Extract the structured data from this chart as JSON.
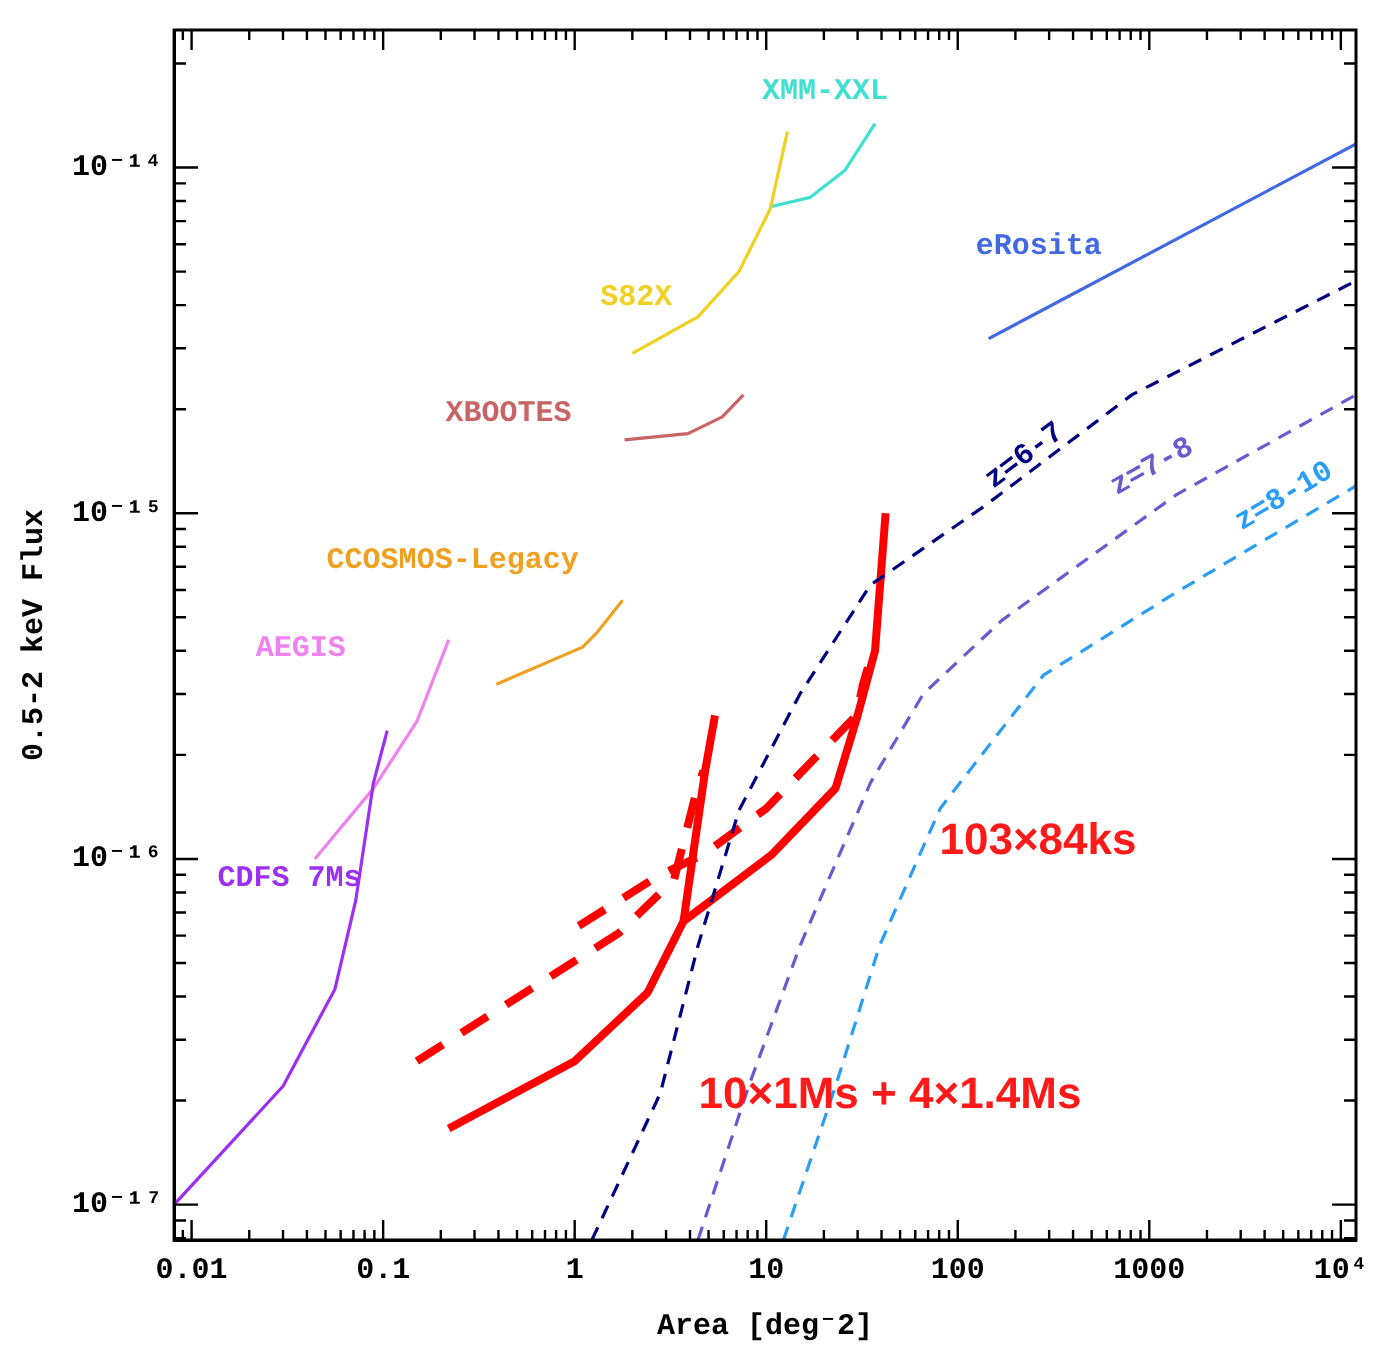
{
  "chart_data": {
    "type": "line",
    "xlabel": "Area [deg⁻2]",
    "ylabel": "0.5-2 keV Flux",
    "log": "xy",
    "grid": false,
    "legend": false,
    "xlim": [
      0.0081,
      12000
    ],
    "xticks": [
      {
        "value": 0.009,
        "label": null
      },
      {
        "value": 0.01,
        "label": "0.01"
      },
      {
        "value": 0.02,
        "label": null
      },
      {
        "value": 0.03,
        "label": null
      },
      {
        "value": 0.04,
        "label": null
      },
      {
        "value": 0.05,
        "label": null
      },
      {
        "value": 0.06,
        "label": null
      },
      {
        "value": 0.07,
        "label": null
      },
      {
        "value": 0.08,
        "label": null
      },
      {
        "value": 0.09,
        "label": null
      },
      {
        "value": 0.1,
        "label": "0.1"
      },
      {
        "value": 0.2,
        "label": null
      },
      {
        "value": 0.3,
        "label": null
      },
      {
        "value": 0.4,
        "label": null
      },
      {
        "value": 0.5,
        "label": null
      },
      {
        "value": 0.6,
        "label": null
      },
      {
        "value": 0.7,
        "label": null
      },
      {
        "value": 0.8,
        "label": null
      },
      {
        "value": 0.9,
        "label": null
      },
      {
        "value": 1,
        "label": "1"
      },
      {
        "value": 2,
        "label": null
      },
      {
        "value": 3,
        "label": null
      },
      {
        "value": 4,
        "label": null
      },
      {
        "value": 5,
        "label": null
      },
      {
        "value": 6,
        "label": null
      },
      {
        "value": 7,
        "label": null
      },
      {
        "value": 8,
        "label": null
      },
      {
        "value": 9,
        "label": null
      },
      {
        "value": 10,
        "label": "10"
      },
      {
        "value": 20,
        "label": null
      },
      {
        "value": 30,
        "label": null
      },
      {
        "value": 40,
        "label": null
      },
      {
        "value": 50,
        "label": null
      },
      {
        "value": 60,
        "label": null
      },
      {
        "value": 70,
        "label": null
      },
      {
        "value": 80,
        "label": null
      },
      {
        "value": 90,
        "label": null
      },
      {
        "value": 100,
        "label": "100"
      },
      {
        "value": 200,
        "label": null
      },
      {
        "value": 300,
        "label": null
      },
      {
        "value": 400,
        "label": null
      },
      {
        "value": 500,
        "label": null
      },
      {
        "value": 600,
        "label": null
      },
      {
        "value": 700,
        "label": null
      },
      {
        "value": 800,
        "label": null
      },
      {
        "value": 900,
        "label": null
      },
      {
        "value": 1000,
        "label": "1000"
      },
      {
        "value": 2000,
        "label": null
      },
      {
        "value": 3000,
        "label": null
      },
      {
        "value": 4000,
        "label": null
      },
      {
        "value": 5000,
        "label": null
      },
      {
        "value": 6000,
        "label": null
      },
      {
        "value": 7000,
        "label": null
      },
      {
        "value": 8000,
        "label": null
      },
      {
        "value": 9000,
        "label": null
      },
      {
        "value": 10000,
        "label": "10⁴"
      }
    ],
    "ylim": [
      7.9e-18,
      2.5e-14
    ],
    "yticks": [
      {
        "value": 8e-18,
        "label": null
      },
      {
        "value": 9e-18,
        "label": null
      },
      {
        "value": 1e-17,
        "label": "10⁻¹⁷"
      },
      {
        "value": 2e-17,
        "label": null
      },
      {
        "value": 3e-17,
        "label": null
      },
      {
        "value": 4e-17,
        "label": null
      },
      {
        "value": 5e-17,
        "label": null
      },
      {
        "value": 6e-17,
        "label": null
      },
      {
        "value": 7e-17,
        "label": null
      },
      {
        "value": 8e-17,
        "label": null
      },
      {
        "value": 9e-17,
        "label": null
      },
      {
        "value": 1e-16,
        "label": "10⁻¹⁶"
      },
      {
        "value": 2e-16,
        "label": null
      },
      {
        "value": 3e-16,
        "label": null
      },
      {
        "value": 4e-16,
        "label": null
      },
      {
        "value": 5e-16,
        "label": null
      },
      {
        "value": 6e-16,
        "label": null
      },
      {
        "value": 7e-16,
        "label": null
      },
      {
        "value": 8e-16,
        "label": null
      },
      {
        "value": 9e-16,
        "label": null
      },
      {
        "value": 1e-15,
        "label": "10⁻¹⁵"
      },
      {
        "value": 2e-15,
        "label": null
      },
      {
        "value": 3e-15,
        "label": null
      },
      {
        "value": 4e-15,
        "label": null
      },
      {
        "value": 5e-15,
        "label": null
      },
      {
        "value": 6e-15,
        "label": null
      },
      {
        "value": 7e-15,
        "label": null
      },
      {
        "value": 8e-15,
        "label": null
      },
      {
        "value": 9e-15,
        "label": null
      },
      {
        "value": 1e-14,
        "label": "10⁻¹⁴"
      },
      {
        "value": 2e-14,
        "label": null
      }
    ],
    "series": [
      {
        "name": "CDFS 7Ms",
        "color": "#9b30f0",
        "x": [
          0.0081,
          0.03,
          0.056,
          0.072,
          0.089,
          0.105
        ],
        "values": [
          1e-17,
          2.2e-17,
          4.2e-17,
          7.6e-17,
          1.66e-16,
          2.35e-16
        ]
      },
      {
        "name": "AEGIS",
        "color": "#ee82ee",
        "x": [
          0.044,
          0.089,
          0.15,
          0.22
        ],
        "values": [
          1e-16,
          1.6e-16,
          2.5e-16,
          4.3e-16
        ]
      },
      {
        "name": "CCOSMOS-Legacy",
        "color": "#f0a020",
        "x": [
          0.39,
          1.1,
          1.3,
          1.78
        ],
        "values": [
          3.2e-16,
          4.1e-16,
          4.5e-16,
          5.6e-16
        ]
      },
      {
        "name": "XBOOTES",
        "color": "#c86464",
        "x": [
          1.82,
          3.9,
          5.9,
          7.6
        ],
        "values": [
          1.63e-15,
          1.7e-15,
          1.9e-15,
          2.2e-15
        ]
      },
      {
        "name": "S82X",
        "color": "#f0d020",
        "x": [
          2.0,
          4.4,
          7.2,
          10.5,
          12.9
        ],
        "values": [
          2.9e-15,
          3.7e-15,
          5e-15,
          7.6e-15,
          1.27e-14
        ]
      },
      {
        "name": "XMM-XXL",
        "color": "#40e0d0",
        "x": [
          10.5,
          17,
          25.7,
          37
        ],
        "values": [
          7.7e-15,
          8.2e-15,
          9.8e-15,
          1.34e-14
        ]
      },
      {
        "name": "eRosita",
        "color": "#4169e1",
        "x": [
          145,
          12000
        ],
        "values": [
          3.2e-15,
          1.17e-14
        ]
      },
      {
        "name": "z=6-7",
        "color": "#000080",
        "line_style": "dashed",
        "x": [
          1.23,
          2.8,
          4.4,
          7.2,
          15,
          35,
          138,
          810,
          12000
        ],
        "values": [
          7.9e-18,
          2.1e-17,
          5.6e-17,
          1.38e-16,
          3e-16,
          6.2e-16,
          1.05e-15,
          2.2e-15,
          4.7e-15
        ]
      },
      {
        "name": "z=7-8",
        "color": "#6a5acd",
        "line_style": "dashed",
        "x": [
          4.4,
          8.1,
          15,
          35,
          66,
          170,
          1380,
          12000
        ],
        "values": [
          7.9e-18,
          2.2e-17,
          5.6e-17,
          1.66e-16,
          3e-16,
          4.9e-16,
          1.13e-15,
          2.2e-15
        ]
      },
      {
        "name": "z=8-10",
        "color": "#2a9df4",
        "line_style": "dashed",
        "x": [
          12.3,
          23,
          39,
          81,
          280,
          1380,
          12000
        ],
        "values": [
          7.9e-18,
          2.2e-17,
          5.6e-17,
          1.4e-16,
          3.4e-16,
          5.9e-16,
          1.2e-15
        ]
      },
      {
        "color": "#ff0000",
        "x": [
          0.22,
          1.0,
          2.4,
          3.7,
          4.8,
          5.4
        ],
        "values": [
          1.66e-17,
          2.6e-17,
          4.1e-17,
          6.6e-17,
          1.8e-16,
          2.6e-16
        ]
      },
      {
        "color": "#ff0000",
        "x": [
          3.7,
          10.7,
          23,
          30,
          37,
          42
        ],
        "values": [
          6.6e-17,
          1.03e-16,
          1.6e-16,
          2.6e-16,
          4e-16,
          1e-15
        ]
      },
      {
        "color": "#ff0000",
        "line_style": "dashed",
        "x": [
          0.15,
          1.7,
          3.3,
          4.3,
          4.7
        ],
        "values": [
          2.6e-17,
          6.1e-17,
          8.7e-17,
          1.55e-16,
          1.8e-16
        ]
      },
      {
        "color": "#ff0000",
        "line_style": "dashed",
        "x": [
          1.05,
          2.7,
          4.7,
          10,
          29.5,
          32,
          36
        ],
        "values": [
          6.4e-17,
          8.9e-17,
          1.03e-16,
          1.4e-16,
          2.6e-16,
          3.2e-16,
          4e-16
        ]
      }
    ],
    "annotations": [
      "103×84ks",
      "10×1Ms + 4×1.4Ms"
    ]
  }
}
